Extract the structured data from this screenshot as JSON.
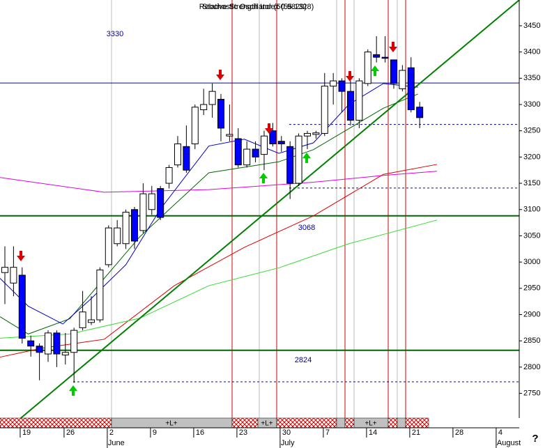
{
  "chart_data": {
    "type": "candlestick",
    "titles": [
      "Stochastic Oscillator (50.9829)",
      "Relative Strength Index (55.1328)"
    ],
    "x": [
      0,
      1,
      2,
      3,
      4,
      5,
      6,
      7,
      8,
      9,
      10,
      11,
      12,
      13,
      14,
      15,
      16,
      17,
      18,
      19,
      20,
      21,
      22,
      23,
      24,
      25,
      26,
      27,
      28,
      29,
      30,
      31,
      32,
      33,
      34,
      35,
      36,
      37,
      38,
      39,
      40,
      41,
      42,
      43,
      44,
      45,
      46,
      47,
      48
    ],
    "open": [
      2980,
      2960,
      2975,
      2850,
      2840,
      2825,
      2865,
      2823,
      2828,
      2875,
      2885,
      2890,
      2995,
      3035,
      3035,
      3100,
      3060,
      3100,
      3140,
      3150,
      3185,
      3220,
      3225,
      3290,
      3300,
      3310,
      3240,
      3235,
      3185,
      3215,
      3205,
      3250,
      3230,
      3220,
      3150,
      3240,
      3243,
      3245,
      3335,
      3345,
      3325,
      3270,
      3340,
      3395,
      3390,
      3385,
      3330,
      3370,
      3295
    ],
    "high": [
      3030,
      3030,
      2990,
      2860,
      2845,
      2870,
      2870,
      2865,
      2875,
      2945,
      2935,
      2990,
      3070,
      3080,
      3100,
      3105,
      3150,
      3145,
      3145,
      3185,
      3240,
      3260,
      3300,
      3330,
      3340,
      3320,
      3300,
      3255,
      3230,
      3230,
      3250,
      3265,
      3240,
      3230,
      3245,
      3250,
      3250,
      3360,
      3360,
      3350,
      3345,
      3350,
      3405,
      3430,
      3430,
      3385,
      3375,
      3390,
      3305
    ],
    "low": [
      2920,
      2935,
      2845,
      2820,
      2775,
      2810,
      2800,
      2805,
      2770,
      2870,
      2880,
      2885,
      2990,
      3030,
      3025,
      3025,
      3055,
      3090,
      3080,
      3140,
      3180,
      3170,
      3215,
      3280,
      3275,
      3230,
      3230,
      3180,
      3180,
      3190,
      3175,
      3220,
      3210,
      3120,
      3145,
      3215,
      3235,
      3240,
      3300,
      3285,
      3260,
      3255,
      3335,
      3380,
      3380,
      3330,
      3325,
      3285,
      3255
    ],
    "close": [
      2990,
      2990,
      2855,
      2840,
      2828,
      2865,
      2825,
      2828,
      2870,
      2905,
      2890,
      2985,
      3065,
      3065,
      3095,
      3040,
      3130,
      3130,
      3085,
      3180,
      3225,
      3175,
      3295,
      3300,
      3325,
      3255,
      3243,
      3185,
      3215,
      3200,
      3240,
      3225,
      3225,
      3150,
      3240,
      3245,
      3246,
      3335,
      3345,
      3325,
      3270,
      3345,
      3400,
      3390,
      3388,
      3340,
      3365,
      3290,
      3275
    ],
    "up_color": "#ffffff",
    "down_color": "#0000ff",
    "lines": [
      {
        "color": "#e000e0",
        "x": [
          -0.56,
          11.5,
          23.6,
          35.7,
          43.8,
          50
        ],
        "values": [
          3161,
          3133,
          3138,
          3152,
          3165,
          3173
        ]
      },
      {
        "color": "#e00000",
        "x": [
          -0.56,
          4.3,
          11.5,
          19.6,
          27.7,
          35.7,
          43.8,
          50
        ],
        "values": [
          2819,
          2836,
          2853,
          2955,
          3028,
          3088,
          3167,
          3186
        ]
      },
      {
        "color": "#33dd33",
        "x": [
          -0.56,
          7.5,
          15.6,
          23.6,
          31.7,
          39.8,
          50
        ],
        "values": [
          2855,
          2863,
          2893,
          2955,
          2989,
          3035,
          3080
        ]
      },
      {
        "color": "#006600",
        "x": [
          -0.56,
          2.7,
          7.5,
          15.6,
          23.6,
          31.7,
          35.7,
          39.8,
          43.8,
          47.8
        ],
        "values": [
          2896,
          2863,
          2892,
          3048,
          3170,
          3191,
          3214,
          3254,
          3293,
          3320
        ]
      },
      {
        "color": "#0000cc",
        "x": [
          -0.56,
          2.7,
          6.7,
          9.9,
          14,
          18,
          23.6,
          27.7,
          31.7,
          35.7,
          39.8,
          43.8,
          47.8
        ],
        "values": [
          2969,
          2916,
          2882,
          2929,
          2995,
          3101,
          3221,
          3234,
          3207,
          3227,
          3300,
          3340,
          3333
        ]
      },
      {
        "color": "#008000",
        "x": [
          1.85,
          59.52
        ],
        "values": [
          2703,
          3499
        ]
      }
    ],
    "hlines": [
      {
        "value": 3341,
        "color": "#0000aa",
        "style": "solid"
      },
      {
        "value": 3088,
        "color": "#006600",
        "style": "solid"
      },
      {
        "value": 2832,
        "color": "#006600",
        "style": "solid"
      },
      {
        "value": 3262,
        "color": "#0000aa",
        "style": "dotted"
      },
      {
        "value": 3141,
        "color": "#0000aa",
        "style": "dotted"
      },
      {
        "value": 2772,
        "color": "#0000aa",
        "style": "dotted"
      }
    ],
    "annotations": [
      "3330",
      "3068",
      "2824"
    ],
    "band_labels": [
      "+L+",
      "+L+",
      "+L+"
    ],
    "xlim": [
      -0.565,
      59.52
    ],
    "ylim": [
      2703,
      3499
    ],
    "yticks": [
      2750,
      2800,
      2850,
      2900,
      2950,
      3000,
      3050,
      3100,
      3150,
      3200,
      3250,
      3300,
      3350,
      3400,
      3450
    ],
    "xticks": [
      {
        "value": 1.77,
        "label": "19"
      },
      {
        "value": 6.85,
        "label": "26"
      },
      {
        "value": 11.85,
        "label": "2"
      },
      {
        "value": 16.85,
        "label": "9"
      },
      {
        "value": 21.85,
        "label": "16"
      },
      {
        "value": 26.85,
        "label": "23"
      },
      {
        "value": 31.85,
        "label": "30"
      },
      {
        "value": 36.85,
        "label": "7"
      },
      {
        "value": 41.85,
        "label": "14"
      },
      {
        "value": 46.85,
        "label": "21"
      },
      {
        "value": 51.85,
        "label": "28"
      },
      {
        "value": 56.85,
        "label": "4"
      }
    ],
    "months": [
      {
        "value": 11.85,
        "label": "June"
      },
      {
        "value": 31.85,
        "label": "July"
      },
      {
        "value": 56.85,
        "label": "August"
      }
    ],
    "help": "?"
  }
}
